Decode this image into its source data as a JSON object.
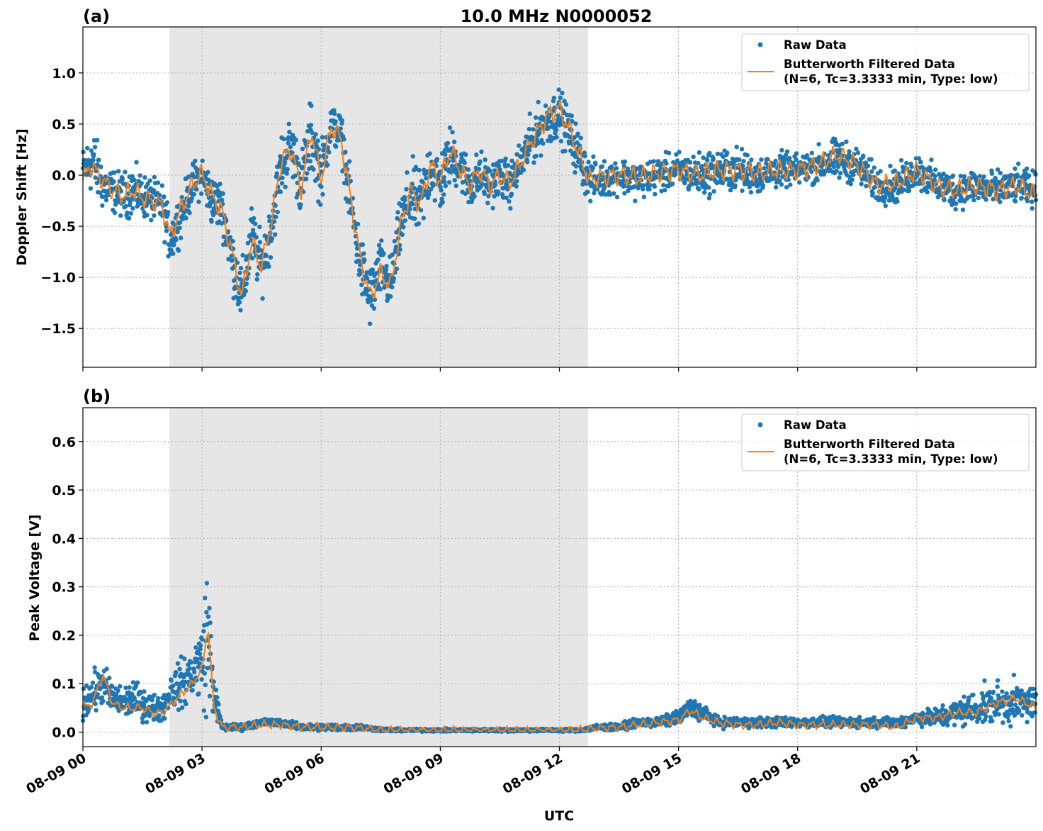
{
  "chart_data": [
    {
      "type": "scatter",
      "panel_label": "(a)",
      "title": "10.0 MHz N0000052",
      "xlabel": "",
      "ylabel": "Doppler Shift [Hz]",
      "ylim": [
        -1.88,
        1.45
      ],
      "xlim_hours": [
        0,
        24
      ],
      "yticks": [
        1.0,
        0.5,
        0.0,
        -0.5,
        -1.0,
        -1.5
      ],
      "ytick_labels": [
        "1.0",
        "0.5",
        "0.0",
        "−0.5",
        "−1.0",
        "−1.5"
      ],
      "grid": true,
      "legend_position": "top-right",
      "shaded_interval_hours": [
        2.18,
        12.72
      ],
      "series": [
        {
          "name": "Raw Data",
          "kind": "scatter",
          "color": "#1f77b4",
          "x_hours": [
            0,
            0.25,
            0.5,
            0.75,
            1,
            1.25,
            1.5,
            1.75,
            2,
            2.2,
            2.5,
            2.75,
            3,
            3.25,
            3.5,
            3.75,
            4,
            4.25,
            4.5,
            4.75,
            5,
            5.25,
            5.5,
            5.75,
            6,
            6.25,
            6.5,
            6.75,
            7,
            7.25,
            7.5,
            7.75,
            8,
            8.25,
            8.5,
            8.75,
            9,
            9.25,
            9.5,
            9.75,
            10,
            10.25,
            10.5,
            10.75,
            11,
            11.25,
            11.5,
            11.75,
            12,
            12.25,
            12.5,
            12.75,
            13,
            13.5,
            14,
            14.5,
            15,
            15.5,
            16,
            16.5,
            17,
            17.5,
            18,
            18.5,
            19,
            19.5,
            20,
            20.5,
            21,
            21.5,
            22,
            22.5,
            23,
            23.5,
            24
          ],
          "y": [
            0.05,
            0.15,
            -0.1,
            -0.15,
            -0.2,
            -0.15,
            -0.2,
            -0.25,
            -0.3,
            -0.65,
            -0.35,
            -0.1,
            0.0,
            -0.25,
            -0.3,
            -0.8,
            -1.2,
            -0.6,
            -0.9,
            -0.5,
            0.1,
            0.3,
            -0.1,
            0.4,
            0.0,
            0.5,
            0.4,
            -0.3,
            -0.9,
            -1.2,
            -0.9,
            -1.1,
            -0.5,
            -0.2,
            -0.3,
            0.1,
            -0.1,
            0.2,
            0.1,
            -0.1,
            0.0,
            -0.1,
            0.0,
            -0.1,
            0.1,
            0.3,
            0.45,
            0.55,
            0.6,
            0.4,
            0.2,
            -0.05,
            -0.05,
            0.0,
            -0.05,
            0.0,
            0.05,
            0.0,
            0.05,
            0.05,
            0.0,
            0.05,
            0.05,
            0.1,
            0.15,
            0.1,
            -0.1,
            -0.1,
            0.05,
            -0.1,
            -0.15,
            -0.1,
            -0.15,
            -0.1,
            -0.15
          ],
          "spread": [
            0.3,
            0.45,
            0.35,
            0.3,
            0.3,
            0.35,
            0.3,
            0.3,
            0.3,
            0.35,
            0.3,
            0.3,
            0.3,
            0.35,
            0.35,
            0.4,
            0.45,
            0.45,
            0.4,
            0.4,
            0.45,
            0.4,
            0.45,
            0.5,
            0.45,
            0.3,
            0.3,
            0.4,
            0.45,
            0.45,
            0.4,
            0.4,
            0.4,
            0.5,
            0.45,
            0.45,
            0.45,
            0.4,
            0.35,
            0.35,
            0.35,
            0.3,
            0.3,
            0.3,
            0.3,
            0.35,
            0.35,
            0.35,
            0.35,
            0.35,
            0.35,
            0.3,
            0.25,
            0.25,
            0.25,
            0.25,
            0.25,
            0.3,
            0.3,
            0.3,
            0.25,
            0.25,
            0.2,
            0.25,
            0.3,
            0.25,
            0.25,
            0.25,
            0.25,
            0.25,
            0.25,
            0.25,
            0.25,
            0.25,
            0.25
          ]
        },
        {
          "name": "Butterworth Filtered Data\n(N=6, Tc=3.3333 min, Type: low)",
          "legend_lines": [
            "Butterworth Filtered Data",
            "(N=6, Tc=3.3333 min, Type: low)"
          ],
          "kind": "line",
          "color": "#ff7f0e",
          "x_hours": [
            0,
            0.2,
            0.5,
            0.75,
            1,
            1.25,
            1.5,
            1.75,
            2,
            2.2,
            2.5,
            2.75,
            3,
            3.25,
            3.5,
            3.75,
            4,
            4.25,
            4.5,
            4.75,
            5,
            5.25,
            5.5,
            5.75,
            6,
            6.25,
            6.5,
            6.75,
            7,
            7.25,
            7.5,
            7.75,
            8,
            8.25,
            8.5,
            8.75,
            9,
            9.25,
            9.5,
            9.75,
            10,
            10.25,
            10.5,
            10.75,
            11,
            11.25,
            11.5,
            11.75,
            12,
            12.25,
            12.5,
            12.75,
            13,
            13.5,
            14,
            14.5,
            15,
            15.5,
            16,
            16.5,
            17,
            17.5,
            18,
            18.5,
            19,
            19.5,
            20,
            20.5,
            21,
            21.5,
            22,
            22.5,
            23,
            23.5,
            24
          ],
          "y": [
            -0.05,
            0.1,
            -0.05,
            -0.15,
            -0.2,
            -0.15,
            -0.22,
            -0.25,
            -0.3,
            -0.6,
            -0.3,
            -0.1,
            0.02,
            -0.2,
            -0.35,
            -0.75,
            -1.2,
            -0.65,
            -0.9,
            -0.45,
            0.15,
            0.25,
            -0.15,
            0.45,
            -0.05,
            0.48,
            0.35,
            -0.25,
            -0.85,
            -1.2,
            -0.95,
            -1.1,
            -0.5,
            -0.15,
            -0.3,
            0.1,
            -0.05,
            0.25,
            0.05,
            -0.1,
            0.05,
            -0.1,
            0.0,
            -0.08,
            0.1,
            0.3,
            0.45,
            0.6,
            0.65,
            0.45,
            0.2,
            -0.05,
            -0.02,
            0.0,
            -0.02,
            0.02,
            0.05,
            0.0,
            0.05,
            0.05,
            0.02,
            0.05,
            0.05,
            0.1,
            0.2,
            0.1,
            -0.1,
            -0.08,
            0.05,
            -0.1,
            -0.15,
            -0.1,
            -0.15,
            -0.1,
            -0.2
          ]
        }
      ]
    },
    {
      "type": "scatter",
      "panel_label": "(b)",
      "title": "",
      "xlabel": "UTC",
      "ylabel": "Peak Voltage [V]",
      "ylim": [
        -0.03,
        0.67
      ],
      "xlim_hours": [
        0,
        24
      ],
      "yticks": [
        0.6,
        0.5,
        0.4,
        0.3,
        0.2,
        0.1,
        0.0
      ],
      "ytick_labels": [
        "0.6",
        "0.5",
        "0.4",
        "0.3",
        "0.2",
        "0.1",
        "0.0"
      ],
      "xticks_hours": [
        0,
        3,
        6,
        9,
        12,
        15,
        18,
        21
      ],
      "xtick_labels": [
        "08-09 00",
        "08-09 03",
        "08-09 06",
        "08-09 09",
        "08-09 12",
        "08-09 15",
        "08-09 18",
        "08-09 21"
      ],
      "grid": true,
      "legend_position": "top-right",
      "shaded_interval_hours": [
        2.18,
        12.72
      ],
      "series": [
        {
          "name": "Raw Data",
          "kind": "scatter",
          "color": "#1f77b4",
          "x_hours": [
            0,
            0.25,
            0.5,
            0.75,
            1,
            1.25,
            1.5,
            1.75,
            2,
            2.25,
            2.5,
            2.75,
            3,
            3.15,
            3.3,
            3.5,
            4,
            4.5,
            5,
            5.5,
            6,
            6.5,
            7,
            7.5,
            8,
            8.5,
            9,
            9.5,
            10,
            10.5,
            11,
            11.5,
            12,
            12.5,
            13,
            13.5,
            14,
            14.5,
            15,
            15.3,
            15.6,
            16,
            16.5,
            17,
            17.5,
            18,
            18.5,
            19,
            19.5,
            20,
            20.5,
            21,
            21.5,
            22,
            22.5,
            23,
            23.5,
            24
          ],
          "y": [
            0.06,
            0.08,
            0.1,
            0.07,
            0.06,
            0.07,
            0.06,
            0.05,
            0.05,
            0.09,
            0.1,
            0.12,
            0.15,
            0.2,
            0.08,
            0.01,
            0.01,
            0.02,
            0.02,
            0.01,
            0.01,
            0.01,
            0.01,
            0.005,
            0.004,
            0.004,
            0.004,
            0.004,
            0.004,
            0.004,
            0.004,
            0.004,
            0.004,
            0.004,
            0.01,
            0.01,
            0.02,
            0.02,
            0.03,
            0.05,
            0.04,
            0.02,
            0.02,
            0.02,
            0.02,
            0.02,
            0.02,
            0.02,
            0.02,
            0.02,
            0.02,
            0.03,
            0.03,
            0.04,
            0.05,
            0.06,
            0.06,
            0.06
          ],
          "spread": [
            0.05,
            0.06,
            0.06,
            0.05,
            0.05,
            0.05,
            0.05,
            0.04,
            0.04,
            0.06,
            0.07,
            0.08,
            0.12,
            0.25,
            0.06,
            0.01,
            0.01,
            0.01,
            0.01,
            0.01,
            0.01,
            0.01,
            0.008,
            0.005,
            0.004,
            0.004,
            0.004,
            0.004,
            0.004,
            0.004,
            0.004,
            0.004,
            0.004,
            0.004,
            0.01,
            0.01,
            0.012,
            0.015,
            0.02,
            0.03,
            0.025,
            0.015,
            0.015,
            0.015,
            0.015,
            0.015,
            0.015,
            0.015,
            0.015,
            0.015,
            0.015,
            0.02,
            0.03,
            0.04,
            0.05,
            0.06,
            0.06,
            0.05
          ]
        },
        {
          "name": "Butterworth Filtered Data\n(N=6, Tc=3.3333 min, Type: low)",
          "legend_lines": [
            "Butterworth Filtered Data",
            "(N=6, Tc=3.3333 min, Type: low)"
          ],
          "kind": "line",
          "color": "#ff7f0e",
          "x_hours": [
            0,
            0.25,
            0.5,
            0.75,
            1,
            1.25,
            1.5,
            1.75,
            2,
            2.25,
            2.5,
            2.75,
            3,
            3.15,
            3.3,
            3.5,
            4,
            4.5,
            5,
            5.5,
            6,
            6.5,
            7,
            7.5,
            8,
            8.5,
            9,
            9.5,
            10,
            10.5,
            11,
            11.5,
            12,
            12.5,
            13,
            13.5,
            14,
            14.5,
            15,
            15.3,
            15.6,
            16,
            16.5,
            17,
            17.5,
            18,
            18.5,
            19,
            19.5,
            20,
            20.5,
            21,
            21.5,
            22,
            22.5,
            23,
            23.5,
            24
          ],
          "y": [
            0.05,
            0.06,
            0.12,
            0.06,
            0.05,
            0.05,
            0.05,
            0.04,
            0.04,
            0.06,
            0.08,
            0.1,
            0.13,
            0.22,
            0.05,
            0.01,
            0.01,
            0.015,
            0.015,
            0.01,
            0.01,
            0.01,
            0.008,
            0.004,
            0.003,
            0.003,
            0.003,
            0.003,
            0.003,
            0.003,
            0.003,
            0.003,
            0.003,
            0.004,
            0.008,
            0.01,
            0.015,
            0.02,
            0.025,
            0.045,
            0.03,
            0.02,
            0.015,
            0.015,
            0.02,
            0.015,
            0.015,
            0.015,
            0.015,
            0.015,
            0.01,
            0.03,
            0.03,
            0.04,
            0.04,
            0.06,
            0.07,
            0.05
          ]
        }
      ]
    }
  ]
}
